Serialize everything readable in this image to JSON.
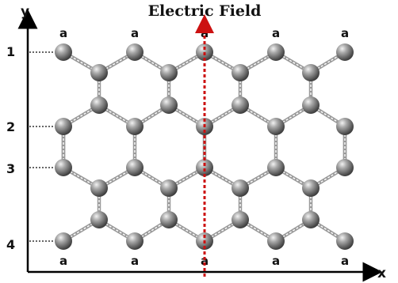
{
  "title": "Electric Field",
  "axes": {
    "x_label": "x",
    "y_label": "y"
  },
  "row_labels": [
    "1",
    "2",
    "3",
    "4"
  ],
  "edge_atom_label": "a",
  "colors": {
    "atom": "#8a8a8a",
    "bond": "#a0a0a0",
    "axis": "#000000",
    "field_line": "#cc1111",
    "guide": "#333333"
  }
}
